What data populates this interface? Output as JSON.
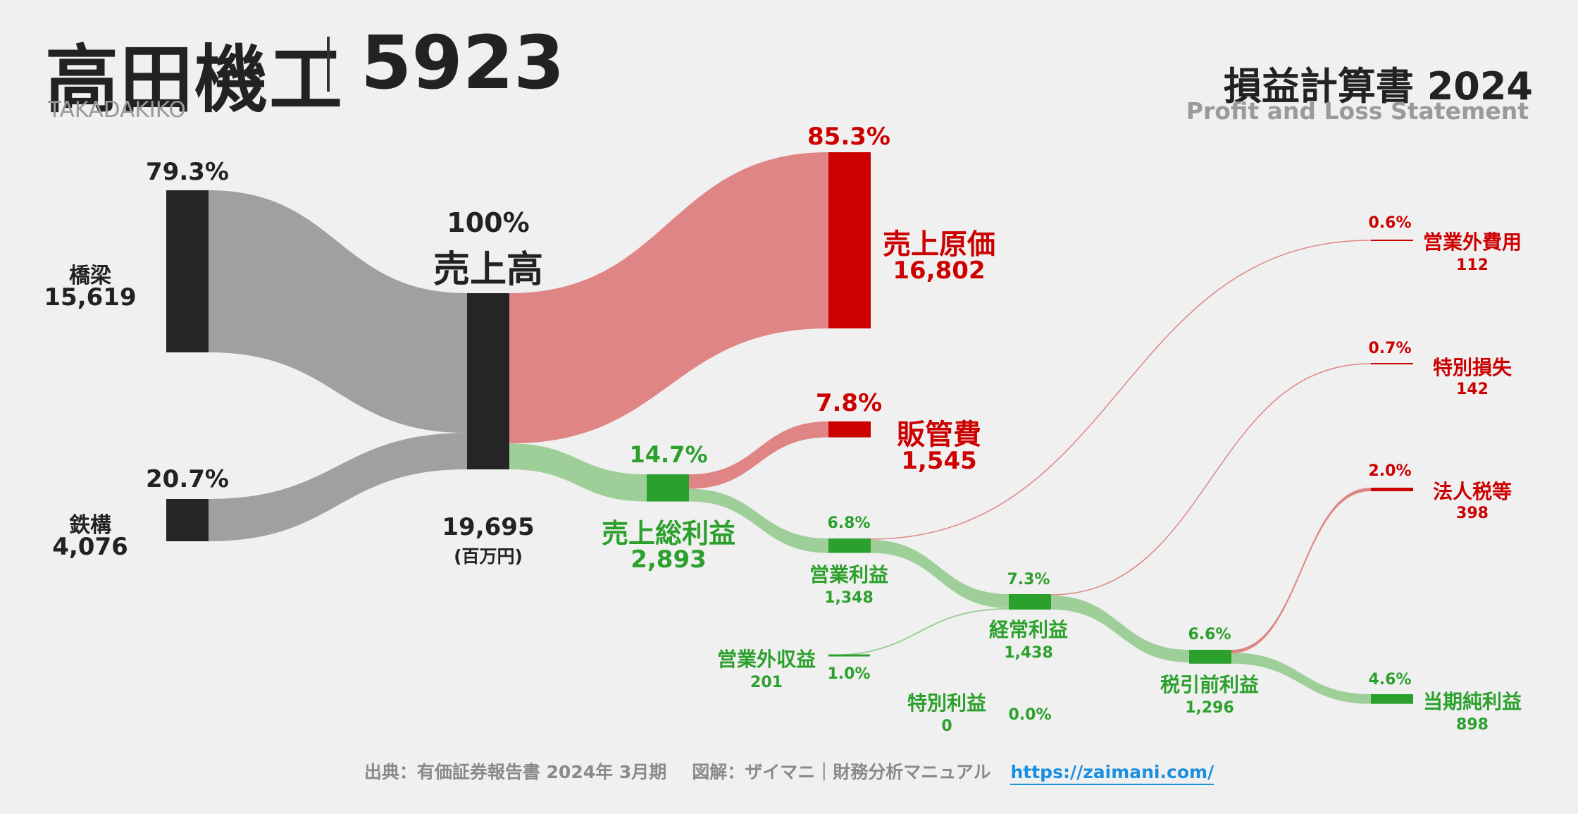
{
  "header": {
    "company": "高田機工",
    "code": "5923",
    "company_en": "TAKADAKIKO",
    "statement_title": "損益計算書 2024",
    "statement_en": "Profit and Loss Statement"
  },
  "footer": {
    "source": "出典：有価証券報告書 2024年 3月期",
    "credit": "図解：ザイマニ｜財務分析マニュアル",
    "url": "https://zaimani.com/"
  },
  "colors": {
    "dark": "#252525",
    "gray_flow": "#a0a0a0",
    "cost_red": "#cc0000",
    "cost_flow": "#e08585",
    "profit_green": "#2ca02c",
    "profit_flow": "#9ecf98"
  },
  "chart_data": {
    "type": "sankey",
    "unit": "(百万円)",
    "nodes": {
      "bridge": {
        "label": "橋梁",
        "value": "15,619",
        "pct": "79.3%"
      },
      "steel": {
        "label": "鉄構",
        "value": "4,076",
        "pct": "20.7%"
      },
      "revenue": {
        "label": "売上高",
        "value": "19,695",
        "pct": "100%"
      },
      "cogs": {
        "label": "売上原価",
        "value": "16,802",
        "pct": "85.3%"
      },
      "sga": {
        "label": "販管費",
        "value": "1,545",
        "pct": "7.8%"
      },
      "gross": {
        "label": "売上総利益",
        "value": "2,893",
        "pct": "14.7%"
      },
      "op": {
        "label": "営業利益",
        "value": "1,348",
        "pct": "6.8%"
      },
      "nonop_inc": {
        "label": "営業外収益",
        "value": "201",
        "pct": "1.0%"
      },
      "nonop_exp": {
        "label": "営業外費用",
        "value": "112",
        "pct": "0.6%"
      },
      "ordinary": {
        "label": "経常利益",
        "value": "1,438",
        "pct": "7.3%"
      },
      "special_gain": {
        "label": "特別利益",
        "value": "0",
        "pct": "0.0%"
      },
      "special_loss": {
        "label": "特別損失",
        "value": "142",
        "pct": "0.7%"
      },
      "pretax": {
        "label": "税引前利益",
        "value": "1,296",
        "pct": "6.6%"
      },
      "tax": {
        "label": "法人税等",
        "value": "398",
        "pct": "2.0%"
      },
      "net": {
        "label": "当期純利益",
        "value": "898",
        "pct": "4.6%"
      }
    },
    "links": [
      {
        "source": "bridge",
        "target": "revenue",
        "value": 15619
      },
      {
        "source": "steel",
        "target": "revenue",
        "value": 4076
      },
      {
        "source": "revenue",
        "target": "cogs",
        "value": 16802
      },
      {
        "source": "revenue",
        "target": "gross",
        "value": 2893
      },
      {
        "source": "gross",
        "target": "sga",
        "value": 1545
      },
      {
        "source": "gross",
        "target": "op",
        "value": 1348
      },
      {
        "source": "op",
        "target": "nonop_exp",
        "value": 112
      },
      {
        "source": "op",
        "target": "ordinary",
        "value": 1236
      },
      {
        "source": "nonop_inc",
        "target": "ordinary",
        "value": 201
      },
      {
        "source": "ordinary",
        "target": "special_loss",
        "value": 142
      },
      {
        "source": "ordinary",
        "target": "pretax",
        "value": 1296
      },
      {
        "source": "pretax",
        "target": "tax",
        "value": 398
      },
      {
        "source": "pretax",
        "target": "net",
        "value": 898
      }
    ]
  }
}
